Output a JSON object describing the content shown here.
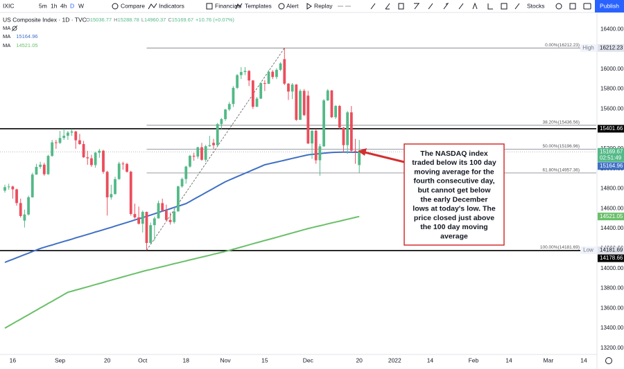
{
  "toolbar": {
    "symbol": "IXIC",
    "intervals": [
      "5m",
      "1h",
      "4h",
      "D",
      "W"
    ],
    "buttons": [
      "Compare",
      "Indicators",
      "Financials",
      "Templates",
      "Alert",
      "Replay"
    ],
    "right": "Stocks",
    "publish": "Publish"
  },
  "chart_data": {
    "type": "candlestick",
    "title": "US Composite Index · 1D · TVC",
    "legend_labels": {
      "open": "O",
      "high": "H",
      "low": "L",
      "close": "C"
    },
    "change": "+10.76 (+0.07%)",
    "countdown": "02:51:49",
    "hidden_indicator": "MA",
    "high_label": "High",
    "low_label": "Low",
    "up_color": "#53b987",
    "down_color": "#eb4d5c",
    "categories": [
      null,
      null,
      "16",
      null,
      null,
      null,
      null,
      null,
      null,
      null,
      null,
      null,
      null,
      null,
      "Sep",
      null,
      null,
      null,
      null,
      null,
      null,
      null,
      null,
      null,
      null,
      null,
      "20",
      null,
      null,
      null,
      null,
      null,
      null,
      null,
      null,
      "Oct",
      null,
      null,
      null,
      null,
      null,
      null,
      null,
      null,
      null,
      null,
      "18",
      null,
      null,
      null,
      null,
      null,
      null,
      null,
      null,
      null,
      "Nov",
      null,
      null,
      null,
      null,
      null,
      null,
      null,
      null,
      null,
      "15",
      null,
      null,
      null,
      null,
      null,
      null,
      null,
      null,
      null,
      null,
      "Dec",
      null,
      null,
      null,
      null,
      null,
      null,
      null,
      null,
      null,
      null,
      null,
      null,
      "20",
      null,
      null,
      null,
      null,
      null,
      null,
      null,
      null,
      "2022",
      null,
      null,
      null,
      null,
      null,
      null,
      null,
      null,
      "14",
      null,
      null,
      null,
      null,
      null,
      null,
      null,
      null,
      null,
      null,
      "Feb",
      null,
      null,
      null,
      null,
      null,
      null,
      null,
      null,
      "14",
      null,
      null,
      null,
      null,
      null,
      null,
      null,
      null,
      null,
      "Mar",
      null,
      null,
      null,
      null,
      null,
      null,
      null,
      null,
      "14",
      null,
      null,
      null
    ],
    "open": [
      14780,
      14816,
      14822,
      14793,
      14656,
      14480,
      14541,
      14714,
      14942,
      15019,
      15041,
      14945,
      15129,
      15265,
      15259,
      15309,
      15331,
      15363,
      15374,
      15286,
      15248,
      15115,
      15105,
      15037,
      15161,
      15181,
      14969,
      14713,
      14746,
      14896,
      15052,
      15048,
      14970,
      14546,
      14512,
      14448,
      14567,
      14255,
      14434,
      14502,
      14655,
      14580,
      14486,
      14465,
      14572,
      14823,
      14897,
      15022,
      15130,
      15122,
      15216,
      15090,
      15226,
      15260,
      15236,
      15448,
      15498,
      15595,
      15650,
      15812,
      15940,
      15971,
      15982,
      15886,
      15622,
      15704,
      15860,
      15853,
      15974,
      15921,
      15993,
      16100,
      15854,
      15775,
      15845,
      15491,
      15782,
      15734,
      15254,
      15381,
      15085,
      15225,
      15686,
      15786,
      15517,
      15630,
      15413,
      15237,
      15566,
      15181,
      15036.77,
      null,
      null,
      null,
      null,
      null,
      null,
      null,
      null,
      null,
      null,
      null,
      null,
      null,
      null,
      null,
      null,
      null,
      null,
      null,
      null,
      null,
      null,
      null,
      null,
      null,
      null,
      null,
      null,
      null,
      null,
      null,
      null,
      null,
      null,
      null,
      null,
      null,
      null,
      null,
      null,
      null,
      null,
      null,
      null,
      null,
      null,
      null,
      null,
      null,
      null,
      null,
      null,
      null,
      null,
      null,
      null,
      null,
      null,
      null,
      null
    ],
    "high": [
      14840,
      14850,
      14830,
      14800,
      14700,
      14590,
      14730,
      14960,
      15050,
      15070,
      15060,
      15140,
      15290,
      15290,
      15380,
      15400,
      15380,
      15400,
      15380,
      15350,
      15280,
      15180,
      15140,
      15170,
      15200,
      15190,
      14980,
      14840,
      14920,
      15070,
      15070,
      15060,
      14980,
      14650,
      14620,
      14580,
      14570,
      14460,
      14520,
      14680,
      14700,
      14640,
      14560,
      14600,
      14830,
      14910,
      15030,
      15140,
      15160,
      15220,
      15260,
      15240,
      15330,
      15300,
      15460,
      15510,
      15600,
      15670,
      15830,
      15950,
      16020,
      16020,
      15990,
      15890,
      15720,
      15870,
      15890,
      15990,
      15990,
      16010,
      16070,
      16212.23,
      15860,
      15860,
      15850,
      15800,
      15800,
      15782,
      15390,
      15400,
      15250,
      15700,
      15800,
      15790,
      15640,
      15640,
      15420,
      15580,
      15630,
      15300,
      15288.78,
      null,
      null,
      null,
      null,
      null,
      null,
      null,
      null,
      null,
      null,
      null,
      null,
      null,
      null,
      null,
      null,
      null,
      null,
      null,
      null,
      null,
      null,
      null,
      null,
      null,
      null,
      null,
      null,
      null,
      null,
      null,
      null,
      null,
      null,
      null,
      null,
      null,
      null,
      null,
      null,
      null,
      null,
      null,
      null,
      null,
      null,
      null,
      null,
      null,
      null,
      null,
      null,
      null,
      null,
      null,
      null,
      null,
      null,
      null,
      null
    ],
    "low": [
      14760,
      14790,
      14700,
      14630,
      14510,
      14410,
      14530,
      14710,
      14940,
      15000,
      14930,
      14940,
      15120,
      15200,
      15250,
      15290,
      15290,
      15330,
      15200,
      15240,
      15110,
      15040,
      15020,
      15010,
      15110,
      14950,
      14530,
      14690,
      14740,
      14890,
      14990,
      14960,
      14530,
      14500,
      14440,
      14360,
      14181.69,
      14250,
      14280,
      14500,
      14570,
      14480,
      14440,
      14450,
      14570,
      14810,
      14850,
      15010,
      15080,
      15100,
      15080,
      15070,
      15220,
      15200,
      15230,
      15400,
      15480,
      15580,
      15620,
      15800,
      15900,
      15940,
      15830,
      15600,
      15620,
      15700,
      15780,
      15850,
      15900,
      15900,
      15980,
      15840,
      15690,
      15700,
      15480,
      15490,
      15530,
      15248,
      15100,
      15050,
      14930,
      15220,
      15680,
      15510,
      15500,
      15400,
      15160,
      15150,
      15170,
      15050,
      14960.37,
      null,
      null,
      null,
      null,
      null,
      null,
      null,
      null,
      null,
      null,
      null,
      null,
      null,
      null,
      null,
      null,
      null,
      null,
      null,
      null,
      null,
      null,
      null,
      null,
      null,
      null,
      null,
      null,
      null,
      null,
      null,
      null,
      null,
      null,
      null,
      null,
      null,
      null,
      null,
      null,
      null,
      null,
      null,
      null,
      null,
      null,
      null,
      null,
      null,
      null,
      null,
      null,
      null,
      null,
      null,
      null,
      null,
      null,
      null,
      null
    ],
    "close": [
      14816,
      14822,
      14793,
      14656,
      14526,
      14541,
      14714,
      14942,
      15019,
      15041,
      14945,
      15129,
      15265,
      15259,
      15309,
      15331,
      15363,
      15374,
      15286,
      15248,
      15115,
      15105,
      15037,
      15161,
      15181,
      14969,
      14713,
      14746,
      14896,
      15052,
      15048,
      14970,
      14546,
      14512,
      14448,
      14567,
      14255,
      14434,
      14502,
      14655,
      14580,
      14486,
      14465,
      14572,
      14823,
      14897,
      15022,
      15130,
      15122,
      15216,
      15090,
      15226,
      15236,
      15236,
      15448,
      15498,
      15595,
      15650,
      15812,
      15940,
      15971,
      15982,
      15886,
      15622,
      15704,
      15860,
      15853,
      15974,
      15921,
      15993,
      16057,
      15854,
      15775,
      15845,
      15491,
      15782,
      15538,
      15254,
      15381,
      15085,
      15225,
      15686,
      15786,
      15517,
      15630,
      15413,
      15237,
      15566,
      15181,
      15180,
      15169.67,
      null,
      null,
      null,
      null,
      null,
      null,
      null,
      null,
      null,
      null,
      null,
      null,
      null,
      null,
      null,
      null,
      null,
      null,
      null,
      null,
      null,
      null,
      null,
      null,
      null,
      null,
      null,
      null,
      null,
      null,
      null,
      null,
      null,
      null,
      null,
      null,
      null,
      null,
      null,
      null,
      null,
      null,
      null,
      null,
      null,
      null,
      null,
      null,
      null,
      null,
      null,
      null,
      null,
      null,
      null,
      null,
      null,
      null,
      null,
      null
    ],
    "series": [
      {
        "name": "MA",
        "color": "#3f6fc4",
        "values": [
          14060,
          14076,
          14091,
          14107,
          14122,
          14138,
          14153,
          14169,
          14184,
          14200,
          14212,
          14224,
          14235,
          14247,
          14259,
          14271,
          14282,
          14294,
          14306,
          14318,
          14329,
          14341,
          14353,
          14365,
          14376,
          14388,
          14400,
          14412,
          14424,
          14437,
          14449,
          14461,
          14473,
          14486,
          14498,
          14510,
          14523,
          14535,
          14548,
          14561,
          14574,
          14586,
          14599,
          14612,
          14624,
          14637,
          14650,
          14672,
          14694,
          14716,
          14738,
          14760,
          14782,
          14804,
          14826,
          14848,
          14870,
          14887,
          14904,
          14921,
          14938,
          14955,
          14972,
          14989,
          15006,
          15023,
          15040,
          15049,
          15058,
          15067,
          15076,
          15085,
          15095,
          15104,
          15113,
          15122,
          15131,
          15140,
          15144,
          15148,
          15152,
          15156,
          15160,
          15163,
          15165,
          15166,
          15167,
          15167,
          15166,
          15165,
          15164.96,
          null,
          null,
          null,
          null,
          null,
          null,
          null,
          null,
          null,
          null,
          null,
          null,
          null,
          null,
          null,
          null,
          null,
          null,
          null,
          null,
          null,
          null,
          null,
          null,
          null,
          null,
          null,
          null,
          null,
          null,
          null,
          null,
          null,
          null,
          null,
          null,
          null,
          null,
          null,
          null,
          null,
          null,
          null,
          null,
          null,
          null,
          null,
          null,
          null,
          null,
          null,
          null,
          null,
          null,
          null,
          null,
          null,
          null,
          null,
          null
        ]
      },
      {
        "name": "MA",
        "color": "#6abf69",
        "values": [
          13400,
          13423,
          13445,
          13468,
          13490,
          13513,
          13535,
          13558,
          13580,
          13603,
          13625,
          13648,
          13670,
          13693,
          13715,
          13738,
          13760,
          13771,
          13782,
          13793,
          13804,
          13815,
          13826,
          13837,
          13848,
          13859,
          13871,
          13882,
          13893,
          13904,
          13915,
          13926,
          13937,
          13948,
          13959,
          13970,
          13980,
          13989,
          13999,
          14008,
          14018,
          14027,
          14037,
          14047,
          14056,
          14066,
          14075,
          14085,
          14094,
          14104,
          14113,
          14123,
          14132,
          14142,
          14151,
          14161,
          14170,
          14181,
          14192,
          14203,
          14214,
          14225,
          14236,
          14247,
          14258,
          14269,
          14280,
          14290,
          14301,
          14312,
          14323,
          14334,
          14345,
          14356,
          14367,
          14378,
          14389,
          14400,
          14409,
          14419,
          14428,
          14437,
          14447,
          14456,
          14465,
          14474,
          14484,
          14493,
          14502,
          14512,
          14521.05,
          null,
          null,
          null,
          null,
          null,
          null,
          null,
          null,
          null,
          null,
          null,
          null,
          null,
          null,
          null,
          null,
          null,
          null,
          null,
          null,
          null,
          null,
          null,
          null,
          null,
          null,
          null,
          null,
          null,
          null,
          null,
          null,
          null,
          null,
          null,
          null,
          null,
          null,
          null,
          null,
          null,
          null,
          null,
          null,
          null,
          null,
          null,
          null,
          null,
          null,
          null,
          null,
          null,
          null,
          null,
          null,
          null,
          null,
          null,
          null
        ]
      }
    ],
    "ylim": [
      13150,
      16520
    ],
    "yticks": [
      {
        "value": 16400,
        "label": "16400.00"
      },
      {
        "value": 16200,
        "label": "16200.00"
      },
      {
        "value": 16000,
        "label": "16000.00"
      },
      {
        "value": 15800,
        "label": "15800.00"
      },
      {
        "value": 15600,
        "label": "15600.00"
      },
      {
        "value": 15400,
        "label": "15400.00"
      },
      {
        "value": 15200,
        "label": "15200.00"
      },
      {
        "value": 15000,
        "label": "15000.00"
      },
      {
        "value": 14800,
        "label": "14800.00"
      },
      {
        "value": 14600,
        "label": "14600.00"
      },
      {
        "value": 14400,
        "label": "14400.00"
      },
      {
        "value": 14200,
        "label": "14200.00"
      },
      {
        "value": 14000,
        "label": "14000.00"
      },
      {
        "value": 13800,
        "label": "13800.00"
      },
      {
        "value": 13600,
        "label": "13600.00"
      },
      {
        "value": 13400,
        "label": "13400.00"
      },
      {
        "value": 13200,
        "label": "13200.00"
      }
    ],
    "grid": false,
    "hlines": [
      15401.66,
      14178.66
    ],
    "fib": [
      {
        "value": 16212.23,
        "label": "0.00%(16212.23)"
      },
      {
        "value": 15436.56,
        "label": "38.20%(15436.56)"
      },
      {
        "value": 15196.96,
        "label": "50.00%(15196.96)"
      },
      {
        "value": 14957.36,
        "label": "61.80%(14957.36)"
      },
      {
        "value": 14181.69,
        "label": "100.00%(14181.69)"
      }
    ],
    "annotation": {
      "lines": [
        "The NASDAQ index",
        "traded below its 100 day",
        "moving average for the",
        "fourth consecutive day,",
        "but cannot get below",
        "the early December",
        "lows at today's low. The",
        "price closed just above",
        "the 100 day moving",
        "average"
      ],
      "color": "#d32f2f"
    }
  }
}
